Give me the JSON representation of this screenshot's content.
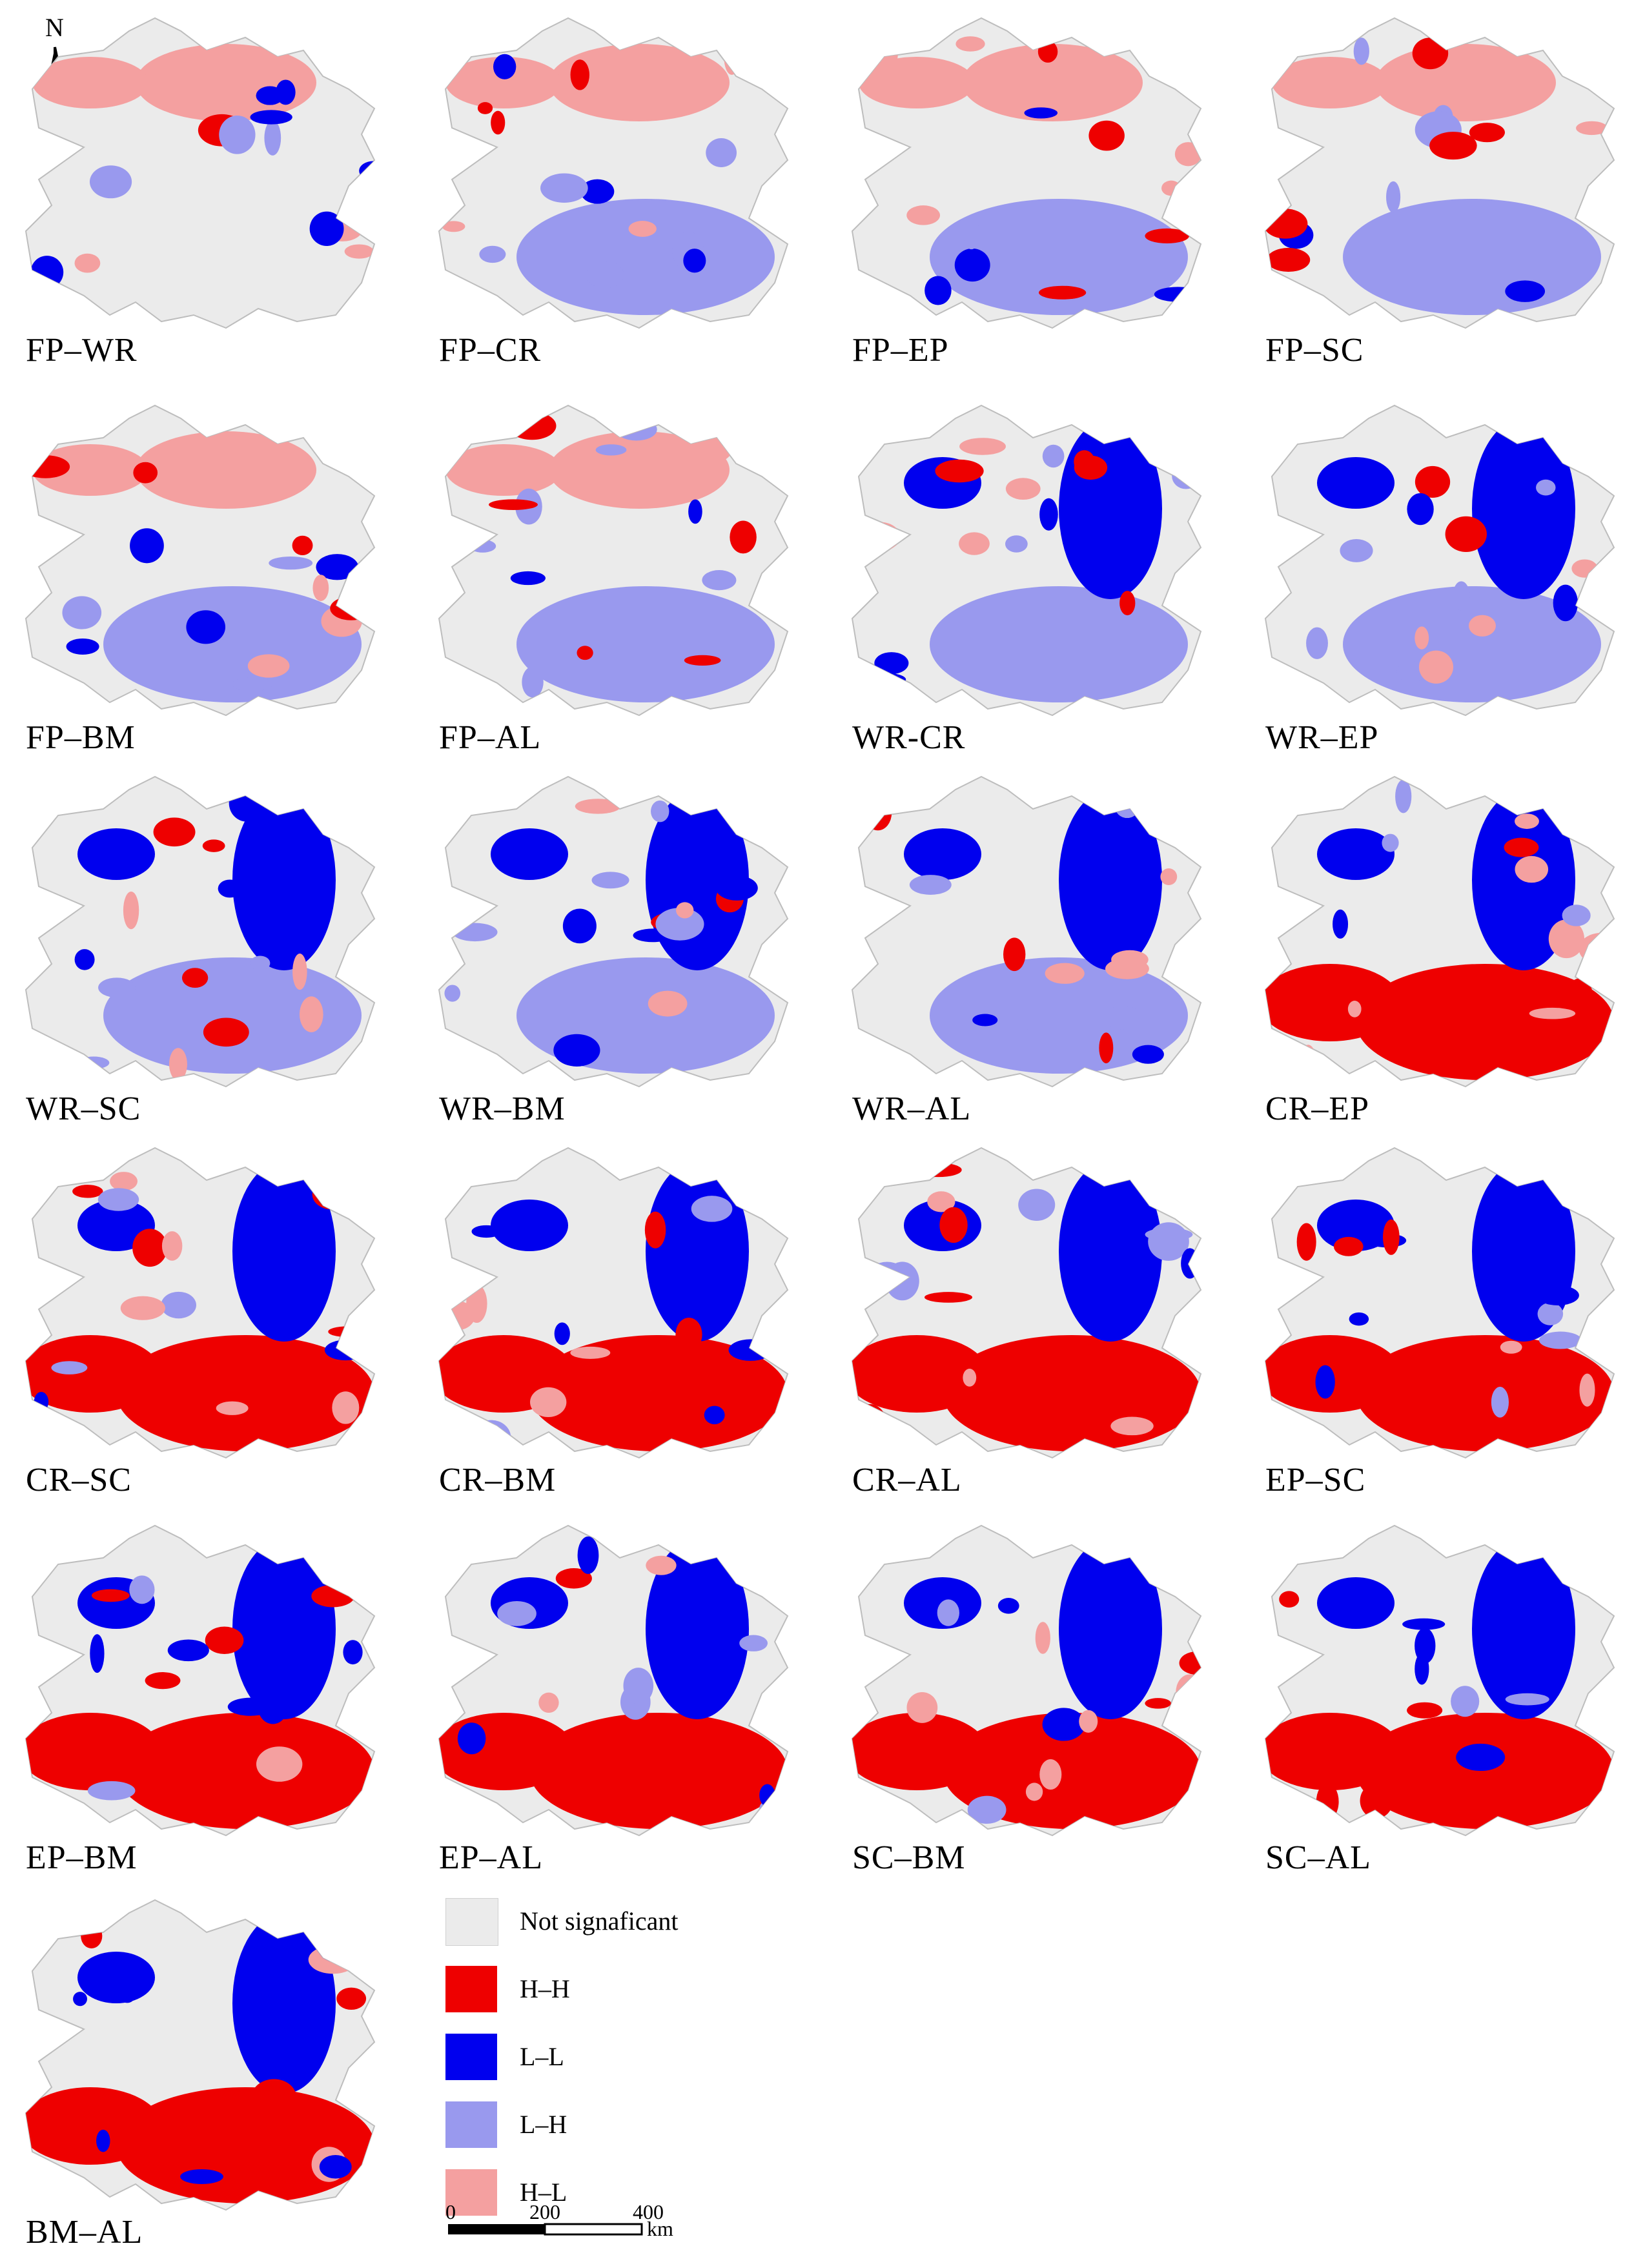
{
  "north_arrow": {
    "label": "N"
  },
  "panels": [
    {
      "label": "FP–WR"
    },
    {
      "label": "FP–CR"
    },
    {
      "label": "FP–EP"
    },
    {
      "label": "FP–SC"
    },
    {
      "label": "FP–BM"
    },
    {
      "label": "FP–AL"
    },
    {
      "label": "WR-CR"
    },
    {
      "label": "WR–EP"
    },
    {
      "label": "WR–SC"
    },
    {
      "label": "WR–BM"
    },
    {
      "label": "WR–AL"
    },
    {
      "label": "CR–EP"
    },
    {
      "label": "CR–SC"
    },
    {
      "label": "CR–BM"
    },
    {
      "label": "CR–AL"
    },
    {
      "label": "EP–SC"
    },
    {
      "label": "EP–BM"
    },
    {
      "label": "EP–AL"
    },
    {
      "label": "SC–BM"
    },
    {
      "label": "SC–AL"
    },
    {
      "label": "BM–AL"
    }
  ],
  "legend": [
    {
      "label": "Not  signaficant",
      "color": "#ebebeb"
    },
    {
      "label": "H–H",
      "color": "#ee0000"
    },
    {
      "label": "L–L",
      "color": "#0000ee"
    },
    {
      "label": "L–H",
      "color": "#9999ee"
    },
    {
      "label": "H–L",
      "color": "#f4a0a0"
    }
  ],
  "scale_bar": {
    "ticks": [
      "0",
      "200",
      "400"
    ],
    "unit": "km"
  }
}
